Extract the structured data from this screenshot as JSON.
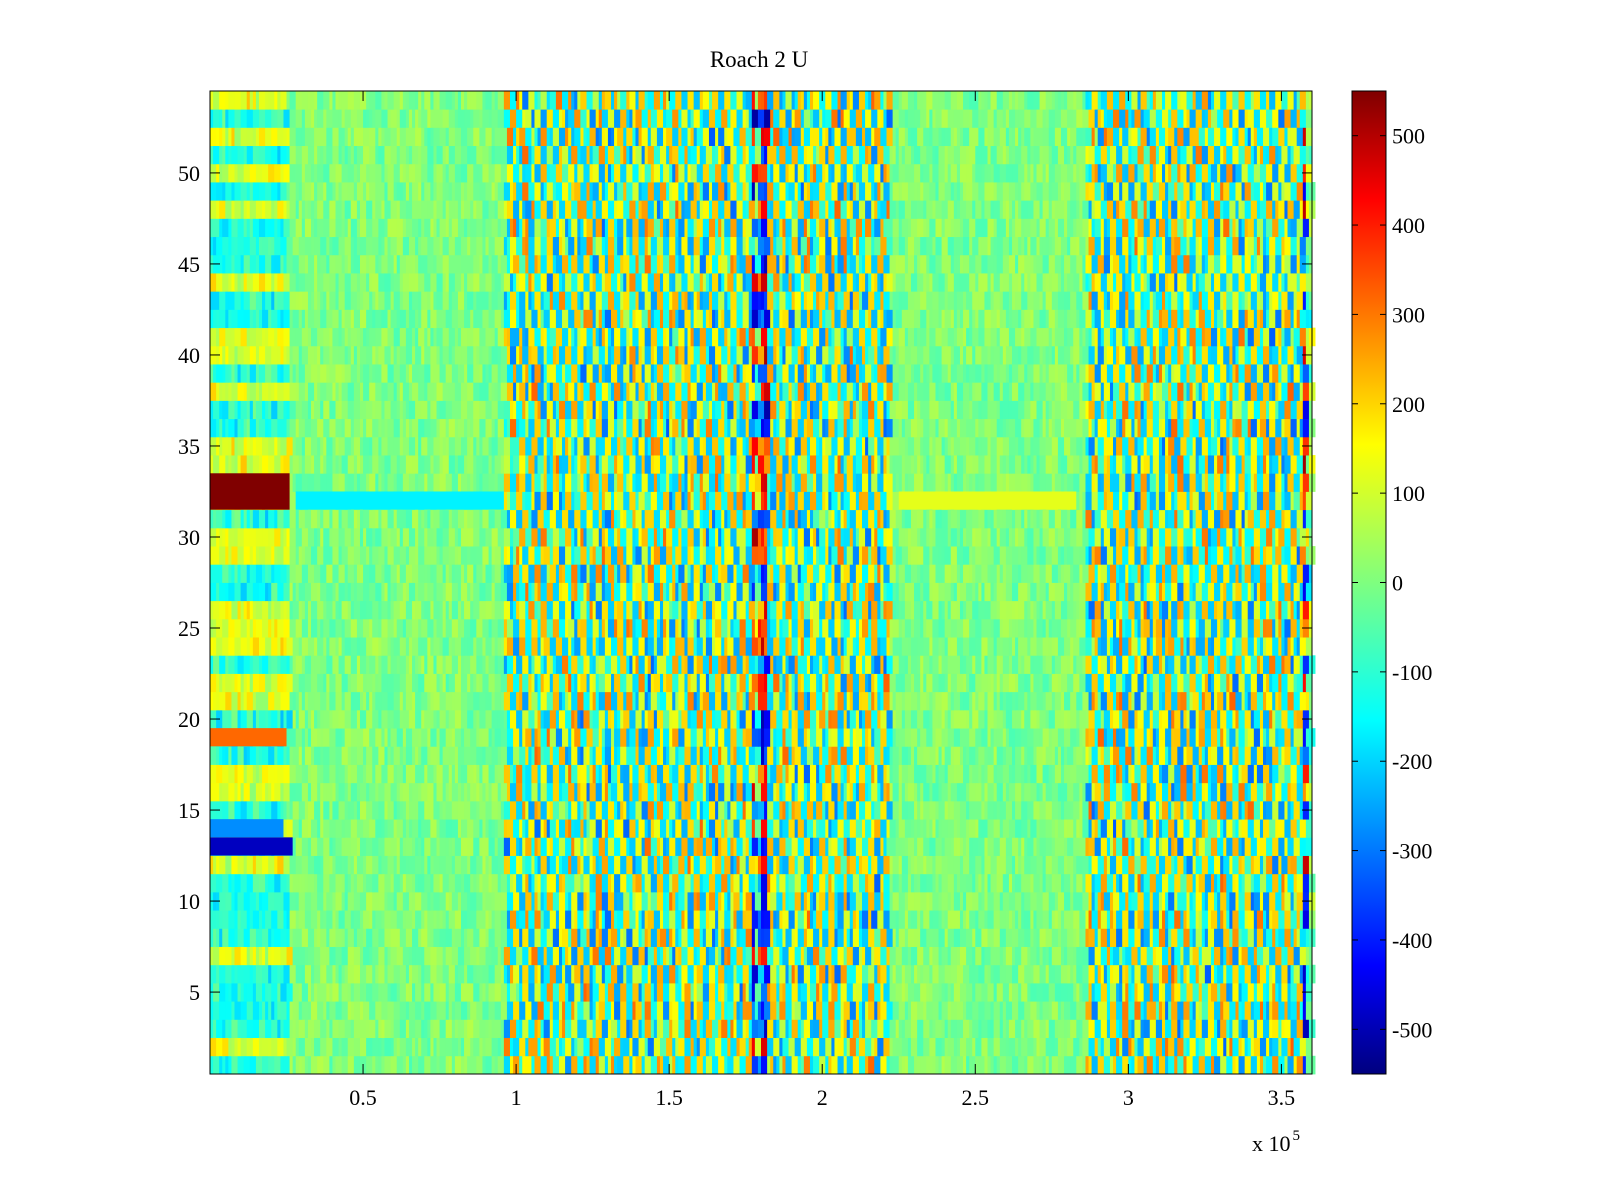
{
  "chart_data": {
    "type": "heatmap",
    "title": "Roach 2 U",
    "xlabel": "",
    "ylabel": "",
    "x_range": [
      0,
      360000
    ],
    "y_range": [
      0.5,
      54.5
    ],
    "x_tick_values": [
      50000,
      100000,
      150000,
      200000,
      250000,
      300000,
      350000
    ],
    "x_tick_labels": [
      "0.5",
      "1",
      "1.5",
      "2",
      "2.5",
      "3",
      "3.5"
    ],
    "x_exponent_label": {
      "base": "x 10",
      "exponent": "5"
    },
    "y_tick_values": [
      5,
      10,
      15,
      20,
      25,
      30,
      35,
      40,
      45,
      50
    ],
    "y_tick_labels": [
      "5",
      "10",
      "15",
      "20",
      "25",
      "30",
      "35",
      "40",
      "45",
      "50"
    ],
    "rows": 54,
    "colormap": "jet",
    "colorbar": {
      "range": [
        -550,
        550
      ],
      "tick_values": [
        500,
        400,
        300,
        200,
        100,
        0,
        -100,
        -200,
        -300,
        -400,
        -500
      ],
      "tick_labels": [
        "500",
        "400",
        "300",
        "200",
        "100",
        "0",
        "-100",
        "-200",
        "-300",
        "-400",
        "-500"
      ]
    },
    "distinct_regions": [
      {
        "x": [
          0,
          26000
        ],
        "y": [
          32,
          33
        ],
        "value": 550
      },
      {
        "x": [
          0,
          27000
        ],
        "y": [
          13,
          13
        ],
        "value": -480
      },
      {
        "x": [
          0,
          25000
        ],
        "y": [
          19,
          19
        ],
        "value": 300
      },
      {
        "x": [
          0,
          24000
        ],
        "y": [
          14,
          14
        ],
        "value": -260
      },
      {
        "x": [
          28000,
          96000
        ],
        "y": [
          32,
          32
        ],
        "value": -150
      },
      {
        "x": [
          225000,
          283000
        ],
        "y": [
          32,
          32
        ],
        "value": 110
      }
    ],
    "active_bands_x": [
      [
        96000,
        222000
      ],
      [
        286000,
        360000
      ]
    ],
    "notable_columns_x": [
      178000,
      180000,
      358000
    ]
  }
}
